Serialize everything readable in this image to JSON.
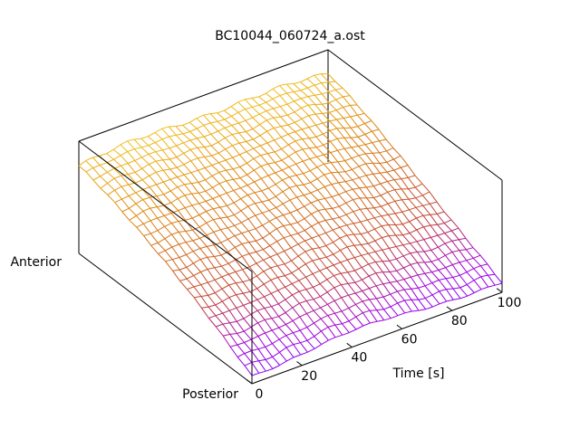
{
  "chart_data": {
    "type": "surface",
    "title": "BC10044_060724_a.ost",
    "xlabel": "Time [s]",
    "y_axis_end_labels": [
      "Anterior",
      "Posterior"
    ],
    "x_ticks": [
      "0",
      "20",
      "40",
      "60",
      "80",
      "100"
    ],
    "xlim": [
      0,
      100
    ],
    "grid": false,
    "colormap": [
      "#7a00ff",
      "#a000e0",
      "#c0403a",
      "#d06a20",
      "#e08a10",
      "#f0c020",
      "#f0e040"
    ],
    "n_time_lines": 36,
    "n_position_lines": 24
  }
}
